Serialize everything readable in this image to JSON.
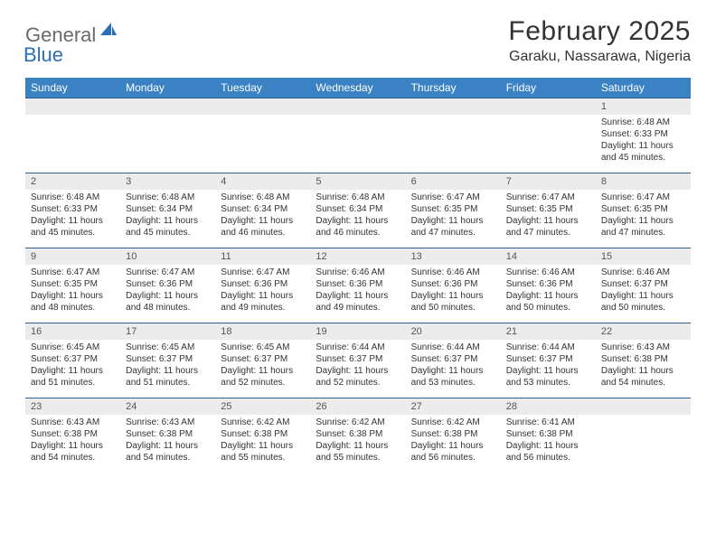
{
  "logo": {
    "general": "General",
    "blue": "Blue"
  },
  "title": "February 2025",
  "location": "Garaku, Nassarawa, Nigeria",
  "colors": {
    "header_bg": "#3a82c4",
    "header_text": "#ffffff",
    "row_border": "#2f5e8f",
    "daynum_bg": "#ececec",
    "logo_gray": "#6b6b6b",
    "logo_blue": "#2c6fb5"
  },
  "days_of_week": [
    "Sunday",
    "Monday",
    "Tuesday",
    "Wednesday",
    "Thursday",
    "Friday",
    "Saturday"
  ],
  "weeks": [
    [
      null,
      null,
      null,
      null,
      null,
      null,
      {
        "n": "1",
        "sr": "Sunrise: 6:48 AM",
        "ss": "Sunset: 6:33 PM",
        "dl": "Daylight: 11 hours and 45 minutes."
      }
    ],
    [
      {
        "n": "2",
        "sr": "Sunrise: 6:48 AM",
        "ss": "Sunset: 6:33 PM",
        "dl": "Daylight: 11 hours and 45 minutes."
      },
      {
        "n": "3",
        "sr": "Sunrise: 6:48 AM",
        "ss": "Sunset: 6:34 PM",
        "dl": "Daylight: 11 hours and 45 minutes."
      },
      {
        "n": "4",
        "sr": "Sunrise: 6:48 AM",
        "ss": "Sunset: 6:34 PM",
        "dl": "Daylight: 11 hours and 46 minutes."
      },
      {
        "n": "5",
        "sr": "Sunrise: 6:48 AM",
        "ss": "Sunset: 6:34 PM",
        "dl": "Daylight: 11 hours and 46 minutes."
      },
      {
        "n": "6",
        "sr": "Sunrise: 6:47 AM",
        "ss": "Sunset: 6:35 PM",
        "dl": "Daylight: 11 hours and 47 minutes."
      },
      {
        "n": "7",
        "sr": "Sunrise: 6:47 AM",
        "ss": "Sunset: 6:35 PM",
        "dl": "Daylight: 11 hours and 47 minutes."
      },
      {
        "n": "8",
        "sr": "Sunrise: 6:47 AM",
        "ss": "Sunset: 6:35 PM",
        "dl": "Daylight: 11 hours and 47 minutes."
      }
    ],
    [
      {
        "n": "9",
        "sr": "Sunrise: 6:47 AM",
        "ss": "Sunset: 6:35 PM",
        "dl": "Daylight: 11 hours and 48 minutes."
      },
      {
        "n": "10",
        "sr": "Sunrise: 6:47 AM",
        "ss": "Sunset: 6:36 PM",
        "dl": "Daylight: 11 hours and 48 minutes."
      },
      {
        "n": "11",
        "sr": "Sunrise: 6:47 AM",
        "ss": "Sunset: 6:36 PM",
        "dl": "Daylight: 11 hours and 49 minutes."
      },
      {
        "n": "12",
        "sr": "Sunrise: 6:46 AM",
        "ss": "Sunset: 6:36 PM",
        "dl": "Daylight: 11 hours and 49 minutes."
      },
      {
        "n": "13",
        "sr": "Sunrise: 6:46 AM",
        "ss": "Sunset: 6:36 PM",
        "dl": "Daylight: 11 hours and 50 minutes."
      },
      {
        "n": "14",
        "sr": "Sunrise: 6:46 AM",
        "ss": "Sunset: 6:36 PM",
        "dl": "Daylight: 11 hours and 50 minutes."
      },
      {
        "n": "15",
        "sr": "Sunrise: 6:46 AM",
        "ss": "Sunset: 6:37 PM",
        "dl": "Daylight: 11 hours and 50 minutes."
      }
    ],
    [
      {
        "n": "16",
        "sr": "Sunrise: 6:45 AM",
        "ss": "Sunset: 6:37 PM",
        "dl": "Daylight: 11 hours and 51 minutes."
      },
      {
        "n": "17",
        "sr": "Sunrise: 6:45 AM",
        "ss": "Sunset: 6:37 PM",
        "dl": "Daylight: 11 hours and 51 minutes."
      },
      {
        "n": "18",
        "sr": "Sunrise: 6:45 AM",
        "ss": "Sunset: 6:37 PM",
        "dl": "Daylight: 11 hours and 52 minutes."
      },
      {
        "n": "19",
        "sr": "Sunrise: 6:44 AM",
        "ss": "Sunset: 6:37 PM",
        "dl": "Daylight: 11 hours and 52 minutes."
      },
      {
        "n": "20",
        "sr": "Sunrise: 6:44 AM",
        "ss": "Sunset: 6:37 PM",
        "dl": "Daylight: 11 hours and 53 minutes."
      },
      {
        "n": "21",
        "sr": "Sunrise: 6:44 AM",
        "ss": "Sunset: 6:37 PM",
        "dl": "Daylight: 11 hours and 53 minutes."
      },
      {
        "n": "22",
        "sr": "Sunrise: 6:43 AM",
        "ss": "Sunset: 6:38 PM",
        "dl": "Daylight: 11 hours and 54 minutes."
      }
    ],
    [
      {
        "n": "23",
        "sr": "Sunrise: 6:43 AM",
        "ss": "Sunset: 6:38 PM",
        "dl": "Daylight: 11 hours and 54 minutes."
      },
      {
        "n": "24",
        "sr": "Sunrise: 6:43 AM",
        "ss": "Sunset: 6:38 PM",
        "dl": "Daylight: 11 hours and 54 minutes."
      },
      {
        "n": "25",
        "sr": "Sunrise: 6:42 AM",
        "ss": "Sunset: 6:38 PM",
        "dl": "Daylight: 11 hours and 55 minutes."
      },
      {
        "n": "26",
        "sr": "Sunrise: 6:42 AM",
        "ss": "Sunset: 6:38 PM",
        "dl": "Daylight: 11 hours and 55 minutes."
      },
      {
        "n": "27",
        "sr": "Sunrise: 6:42 AM",
        "ss": "Sunset: 6:38 PM",
        "dl": "Daylight: 11 hours and 56 minutes."
      },
      {
        "n": "28",
        "sr": "Sunrise: 6:41 AM",
        "ss": "Sunset: 6:38 PM",
        "dl": "Daylight: 11 hours and 56 minutes."
      },
      null
    ]
  ]
}
